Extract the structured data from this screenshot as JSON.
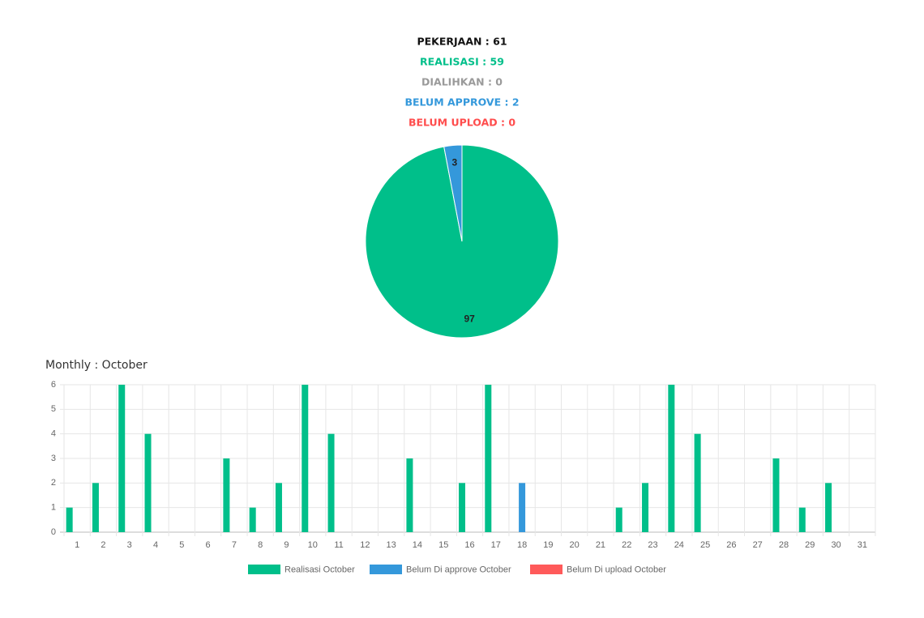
{
  "summary": [
    {
      "text": "PEKERJAAN : 61",
      "color": "#111111"
    },
    {
      "text": "REALISASI : 59",
      "color": "#00bf8a"
    },
    {
      "text": "DIALIHKAN : 0",
      "color": "#9a9a9a"
    },
    {
      "text": "BELUM APPROVE : 2",
      "color": "#3498db"
    },
    {
      "text": "BELUM UPLOAD : 0",
      "color": "#ff4d4d"
    }
  ],
  "chart_data": [
    {
      "type": "pie",
      "values": [
        97,
        3
      ],
      "colors": [
        "#00bf8a",
        "#3498db"
      ]
    },
    {
      "type": "bar",
      "title": "Monthly : October",
      "categories": [
        "1",
        "2",
        "3",
        "4",
        "5",
        "6",
        "7",
        "8",
        "9",
        "10",
        "11",
        "12",
        "13",
        "14",
        "15",
        "16",
        "17",
        "18",
        "19",
        "20",
        "21",
        "22",
        "23",
        "24",
        "25",
        "26",
        "27",
        "28",
        "29",
        "30",
        "31"
      ],
      "series": [
        {
          "name": "Realisasi October",
          "color": "#00bf8a",
          "values": [
            1,
            2,
            6,
            4,
            0,
            0,
            3,
            1,
            2,
            6,
            4,
            0,
            0,
            3,
            0,
            2,
            6,
            0,
            0,
            0,
            0,
            1,
            2,
            6,
            4,
            0,
            0,
            3,
            1,
            2,
            0
          ]
        },
        {
          "name": "Belum Di approve October",
          "color": "#3498db",
          "values": [
            0,
            0,
            0,
            0,
            0,
            0,
            0,
            0,
            0,
            0,
            0,
            0,
            0,
            0,
            0,
            0,
            0,
            2,
            0,
            0,
            0,
            0,
            0,
            0,
            0,
            0,
            0,
            0,
            0,
            0,
            0
          ]
        },
        {
          "name": "Belum Di upload October",
          "color": "#ff5a5a",
          "values": [
            0,
            0,
            0,
            0,
            0,
            0,
            0,
            0,
            0,
            0,
            0,
            0,
            0,
            0,
            0,
            0,
            0,
            0,
            0,
            0,
            0,
            0,
            0,
            0,
            0,
            0,
            0,
            0,
            0,
            0,
            0
          ]
        }
      ],
      "ylim": [
        0,
        6
      ],
      "yticks": [
        0,
        1,
        2,
        3,
        4,
        5,
        6
      ],
      "grid": true,
      "legend": "bottom"
    }
  ]
}
